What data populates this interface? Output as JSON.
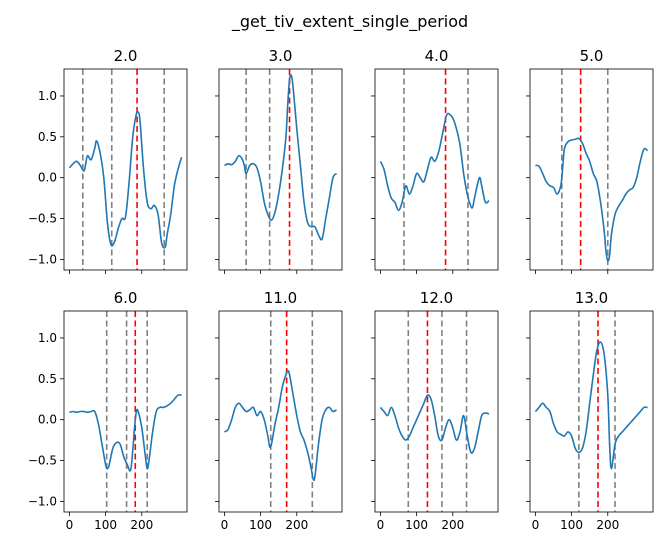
{
  "chart_data": {
    "type": "line",
    "suptitle": "_get_tiv_extent_single_period",
    "layout": {
      "rows": 2,
      "cols": 4,
      "sharex": true,
      "sharey": true
    },
    "xlim": [
      -15,
      325
    ],
    "ylim": [
      -1.13,
      1.33
    ],
    "xticks": [
      0,
      100,
      200
    ],
    "xtick_labels": [
      "0",
      "100",
      "200"
    ],
    "yticks": [
      -1.0,
      -0.5,
      0.0,
      0.5,
      1.0
    ],
    "ytick_labels": [
      "−1.0",
      "−0.5",
      "0.0",
      "0.5",
      "1.0"
    ],
    "line_color": "#1f77b4",
    "vline_colors": {
      "extent": "#808080",
      "peak": "#ff0000"
    },
    "panels": [
      {
        "title": "2.0",
        "x": [
          0,
          10,
          20,
          30,
          40,
          45,
          50,
          60,
          70,
          75,
          85,
          95,
          105,
          115,
          125,
          135,
          145,
          155,
          165,
          175,
          185,
          190,
          195,
          205,
          215,
          225,
          235,
          245,
          255,
          265,
          270,
          280,
          290,
          300,
          310
        ],
        "y": [
          0.12,
          0.17,
          0.2,
          0.15,
          0.08,
          0.17,
          0.27,
          0.22,
          0.36,
          0.45,
          0.3,
          0.0,
          -0.55,
          -0.82,
          -0.78,
          -0.62,
          -0.5,
          -0.48,
          -0.05,
          0.5,
          0.78,
          0.8,
          0.7,
          0.1,
          -0.3,
          -0.38,
          -0.34,
          -0.45,
          -0.8,
          -0.85,
          -0.7,
          -0.45,
          -0.1,
          0.1,
          0.25
        ],
        "vlines": [
          {
            "x": 37,
            "kind": "extent"
          },
          {
            "x": 117,
            "kind": "extent"
          },
          {
            "x": 187,
            "kind": "peak"
          },
          {
            "x": 262,
            "kind": "extent"
          }
        ]
      },
      {
        "title": "3.0",
        "x": [
          0,
          10,
          20,
          30,
          40,
          50,
          55,
          60,
          70,
          80,
          90,
          100,
          110,
          120,
          130,
          140,
          150,
          160,
          170,
          175,
          180,
          185,
          190,
          200,
          210,
          220,
          230,
          240,
          250,
          260,
          270,
          280,
          290,
          300,
          310
        ],
        "y": [
          0.15,
          0.17,
          0.16,
          0.2,
          0.27,
          0.22,
          0.15,
          0.05,
          0.15,
          0.17,
          0.12,
          -0.05,
          -0.3,
          -0.45,
          -0.52,
          -0.42,
          -0.2,
          0.1,
          0.5,
          0.9,
          1.2,
          1.25,
          1.1,
          0.6,
          0.15,
          -0.3,
          -0.55,
          -0.6,
          -0.6,
          -0.7,
          -0.75,
          -0.5,
          -0.25,
          0.0,
          0.05
        ],
        "vlines": [
          {
            "x": 60,
            "kind": "extent"
          },
          {
            "x": 125,
            "kind": "extent"
          },
          {
            "x": 180,
            "kind": "peak"
          },
          {
            "x": 242,
            "kind": "extent"
          }
        ]
      },
      {
        "title": "4.0",
        "x": [
          0,
          10,
          20,
          30,
          40,
          50,
          60,
          70,
          80,
          90,
          100,
          110,
          120,
          130,
          140,
          150,
          160,
          170,
          180,
          185,
          190,
          200,
          210,
          220,
          230,
          240,
          250,
          255,
          260,
          270,
          275,
          280,
          290,
          300
        ],
        "y": [
          0.2,
          0.1,
          -0.1,
          -0.25,
          -0.3,
          -0.4,
          -0.3,
          -0.1,
          -0.2,
          -0.1,
          0.05,
          0.0,
          -0.05,
          0.1,
          0.25,
          0.2,
          0.3,
          0.5,
          0.72,
          0.78,
          0.78,
          0.73,
          0.6,
          0.4,
          0.05,
          -0.2,
          -0.35,
          -0.36,
          -0.25,
          -0.05,
          0.0,
          -0.1,
          -0.3,
          -0.28
        ],
        "vlines": [
          {
            "x": 65,
            "kind": "extent"
          },
          {
            "x": 180,
            "kind": "peak"
          },
          {
            "x": 242,
            "kind": "extent"
          }
        ]
      },
      {
        "title": "5.0",
        "x": [
          0,
          10,
          20,
          30,
          40,
          50,
          60,
          70,
          75,
          80,
          90,
          100,
          110,
          120,
          130,
          140,
          150,
          160,
          170,
          180,
          190,
          195,
          200,
          205,
          210,
          220,
          230,
          240,
          250,
          260,
          270,
          280,
          290,
          300,
          310
        ],
        "y": [
          0.15,
          0.14,
          0.05,
          -0.05,
          -0.1,
          -0.12,
          -0.2,
          -0.1,
          0.1,
          0.35,
          0.44,
          0.46,
          0.47,
          0.48,
          0.42,
          0.3,
          0.2,
          0.05,
          -0.05,
          -0.3,
          -0.65,
          -0.9,
          -1.02,
          -0.95,
          -0.7,
          -0.45,
          -0.35,
          -0.28,
          -0.2,
          -0.15,
          -0.12,
          0.0,
          0.2,
          0.35,
          0.33
        ],
        "vlines": [
          {
            "x": 73,
            "kind": "extent"
          },
          {
            "x": 125,
            "kind": "peak"
          },
          {
            "x": 200,
            "kind": "extent"
          }
        ]
      },
      {
        "title": "6.0",
        "x": [
          0,
          10,
          20,
          30,
          40,
          50,
          60,
          70,
          80,
          90,
          100,
          105,
          110,
          120,
          130,
          140,
          150,
          160,
          170,
          180,
          185,
          190,
          200,
          210,
          215,
          220,
          230,
          240,
          250,
          260,
          270,
          280,
          290,
          300,
          310
        ],
        "y": [
          0.09,
          0.1,
          0.09,
          0.1,
          0.1,
          0.09,
          0.1,
          0.1,
          -0.05,
          -0.3,
          -0.55,
          -0.6,
          -0.55,
          -0.35,
          -0.28,
          -0.3,
          -0.45,
          -0.55,
          -0.6,
          -0.1,
          0.1,
          0.1,
          -0.1,
          -0.45,
          -0.6,
          -0.5,
          -0.15,
          0.1,
          0.15,
          0.15,
          0.17,
          0.2,
          0.25,
          0.3,
          0.3
        ],
        "vlines": [
          {
            "x": 103,
            "kind": "extent"
          },
          {
            "x": 158,
            "kind": "extent"
          },
          {
            "x": 182,
            "kind": "peak"
          },
          {
            "x": 215,
            "kind": "extent"
          }
        ]
      },
      {
        "title": "11.0",
        "x": [
          0,
          10,
          20,
          30,
          40,
          50,
          60,
          70,
          80,
          90,
          100,
          110,
          120,
          125,
          130,
          140,
          150,
          160,
          170,
          175,
          180,
          190,
          200,
          210,
          220,
          230,
          240,
          245,
          250,
          260,
          270,
          280,
          290,
          300,
          310
        ],
        "y": [
          -0.15,
          -0.12,
          0.0,
          0.15,
          0.2,
          0.15,
          0.1,
          0.12,
          0.15,
          0.05,
          0.1,
          0.0,
          -0.2,
          -0.33,
          -0.3,
          -0.05,
          0.15,
          0.4,
          0.55,
          0.6,
          0.55,
          0.3,
          0.05,
          -0.15,
          -0.25,
          -0.4,
          -0.6,
          -0.72,
          -0.7,
          -0.3,
          0.0,
          0.12,
          0.15,
          0.1,
          0.12
        ],
        "vlines": [
          {
            "x": 128,
            "kind": "extent"
          },
          {
            "x": 172,
            "kind": "peak"
          },
          {
            "x": 243,
            "kind": "extent"
          }
        ]
      },
      {
        "title": "12.0",
        "x": [
          0,
          10,
          20,
          30,
          40,
          50,
          60,
          70,
          80,
          90,
          100,
          110,
          120,
          130,
          140,
          150,
          160,
          170,
          180,
          190,
          200,
          210,
          220,
          230,
          240,
          250,
          260,
          270,
          280,
          290,
          300
        ],
        "y": [
          0.15,
          0.1,
          0.05,
          0.15,
          0.05,
          -0.1,
          -0.2,
          -0.25,
          -0.2,
          -0.1,
          0.0,
          0.1,
          0.2,
          0.3,
          0.25,
          0.05,
          -0.2,
          -0.25,
          -0.1,
          0.0,
          -0.1,
          -0.25,
          -0.15,
          0.05,
          -0.2,
          -0.4,
          -0.35,
          -0.15,
          0.05,
          0.08,
          0.07
        ],
        "vlines": [
          {
            "x": 77,
            "kind": "extent"
          },
          {
            "x": 130,
            "kind": "peak"
          },
          {
            "x": 170,
            "kind": "extent"
          },
          {
            "x": 238,
            "kind": "extent"
          }
        ]
      },
      {
        "title": "13.0",
        "x": [
          0,
          10,
          20,
          30,
          40,
          50,
          60,
          70,
          80,
          90,
          100,
          110,
          120,
          130,
          140,
          150,
          160,
          170,
          180,
          190,
          200,
          205,
          210,
          220,
          230,
          240,
          250,
          260,
          270,
          280,
          290,
          300,
          310
        ],
        "y": [
          0.1,
          0.15,
          0.2,
          0.15,
          0.1,
          -0.05,
          -0.15,
          -0.18,
          -0.2,
          -0.15,
          -0.2,
          -0.35,
          -0.4,
          -0.35,
          -0.15,
          0.2,
          0.55,
          0.85,
          0.95,
          0.8,
          0.3,
          -0.3,
          -0.6,
          -0.3,
          -0.2,
          -0.15,
          -0.1,
          -0.05,
          0.0,
          0.05,
          0.1,
          0.15,
          0.15
        ],
        "vlines": [
          {
            "x": 120,
            "kind": "extent"
          },
          {
            "x": 173,
            "kind": "peak"
          },
          {
            "x": 220,
            "kind": "extent"
          }
        ]
      }
    ]
  }
}
